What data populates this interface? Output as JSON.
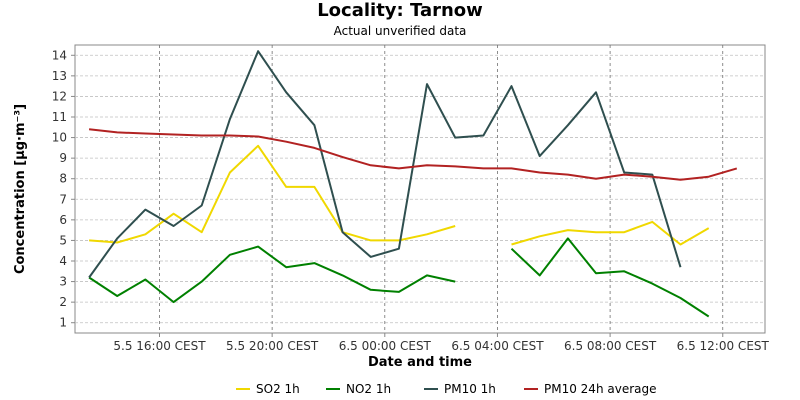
{
  "chart_data": {
    "type": "line",
    "title": "Locality: Tarnow",
    "subtitle": "Actual unverified data",
    "xlabel": "Date and time",
    "ylabel": "Concentration [µg·m⁻³]",
    "ylim": [
      0.5,
      14.5
    ],
    "yticks": [
      1,
      2,
      3,
      4,
      5,
      6,
      7,
      8,
      9,
      10,
      11,
      12,
      13,
      14
    ],
    "xlim": [
      13,
      37.5
    ],
    "x_unit": "hours from 5.5 00:00 CEST",
    "xticks": [
      {
        "x": 16,
        "label": "5.5 16:00 CEST"
      },
      {
        "x": 20,
        "label": "5.5 20:00 CEST"
      },
      {
        "x": 24,
        "label": "6.5 00:00 CEST"
      },
      {
        "x": 28,
        "label": "6.5 04:00 CEST"
      },
      {
        "x": 32,
        "label": "6.5 08:00 CEST"
      },
      {
        "x": 36,
        "label": "6.5 12:00 CEST"
      }
    ],
    "grid": true,
    "legend_position": "bottom",
    "x": [
      13.5,
      14.5,
      15.5,
      16.5,
      17.5,
      18.5,
      19.5,
      20.5,
      21.5,
      22.5,
      23.5,
      24.5,
      25.5,
      26.5,
      27.5,
      28.5,
      29.5,
      30.5,
      31.5,
      32.5,
      33.5,
      34.5,
      35.5,
      36.5,
      37.5
    ],
    "series": [
      {
        "name": "SO2 1h",
        "color": "#f0d800",
        "values": [
          5.0,
          4.9,
          5.3,
          6.3,
          5.4,
          8.3,
          9.6,
          7.6,
          7.6,
          5.4,
          5.0,
          5.0,
          5.3,
          5.7,
          null,
          4.8,
          5.2,
          5.5,
          5.4,
          5.4,
          5.9,
          4.8,
          5.6,
          null,
          null
        ]
      },
      {
        "name": "NO2 1h",
        "color": "#008000",
        "values": [
          3.2,
          2.3,
          3.1,
          2.0,
          3.0,
          4.3,
          4.7,
          3.7,
          3.9,
          3.3,
          2.6,
          2.5,
          3.3,
          3.0,
          null,
          4.6,
          3.3,
          5.1,
          3.4,
          3.5,
          2.9,
          2.2,
          1.3,
          null,
          null
        ]
      },
      {
        "name": "PM10 1h",
        "color": "#2f4f4f",
        "values": [
          3.2,
          5.1,
          6.5,
          5.7,
          6.7,
          10.9,
          14.2,
          12.2,
          10.6,
          5.4,
          4.2,
          4.6,
          12.6,
          10.0,
          10.1,
          12.5,
          9.1,
          10.6,
          12.2,
          8.3,
          8.2,
          3.7,
          null,
          null,
          null
        ]
      },
      {
        "name": "PM10 24h average",
        "color": "#b22222",
        "values": [
          10.4,
          10.25,
          10.2,
          10.15,
          10.1,
          10.1,
          10.05,
          9.8,
          9.5,
          9.05,
          8.65,
          8.5,
          8.65,
          8.6,
          8.5,
          8.5,
          8.3,
          8.2,
          8.0,
          8.2,
          8.1,
          7.95,
          8.1,
          8.5,
          null
        ]
      }
    ]
  }
}
